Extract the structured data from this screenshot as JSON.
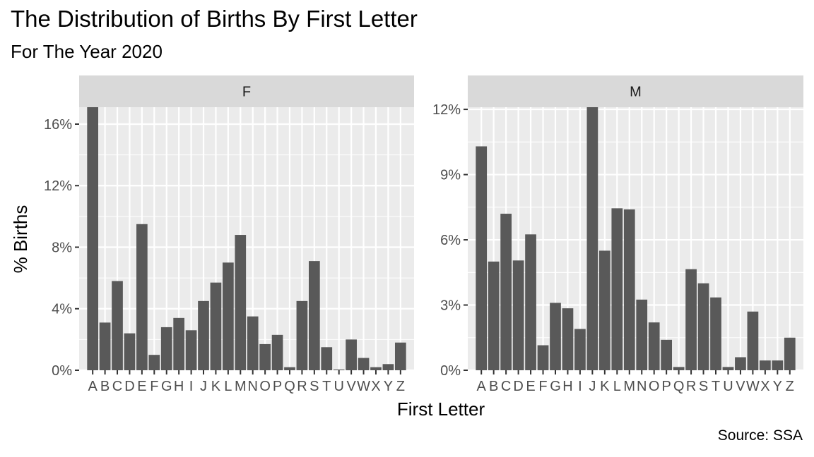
{
  "title": "The Distribution of Births By First Letter",
  "subtitle": "For The Year 2020",
  "caption": "Source: SSA",
  "chart_data": {
    "type": "bar",
    "title": "The Distribution of Births By First Letter",
    "subtitle": "For The Year 2020",
    "xlabel": "First Letter",
    "ylabel": "% Births",
    "caption": "Source: SSA",
    "bar_color": "#595959",
    "panel_background": "#EBEBEB",
    "strip_background": "#D9D9D9",
    "grid": true,
    "categories": [
      "A",
      "B",
      "C",
      "D",
      "E",
      "F",
      "G",
      "H",
      "I",
      "J",
      "K",
      "L",
      "M",
      "N",
      "O",
      "P",
      "Q",
      "R",
      "S",
      "T",
      "U",
      "V",
      "W",
      "X",
      "Y",
      "Z"
    ],
    "panels": [
      {
        "label": "F",
        "ylim": [
          0,
          17.1
        ],
        "yticks": [
          0,
          4,
          8,
          12,
          16
        ],
        "ytick_labels": [
          "0%",
          "4%",
          "8%",
          "12%",
          "16%"
        ],
        "values": [
          17.1,
          3.1,
          5.8,
          2.4,
          9.5,
          1.0,
          2.8,
          3.4,
          2.6,
          4.5,
          5.7,
          7.0,
          8.8,
          3.5,
          1.7,
          2.3,
          0.2,
          4.5,
          7.1,
          1.5,
          0.05,
          2.0,
          0.8,
          0.2,
          0.4,
          1.8
        ]
      },
      {
        "label": "M",
        "ylim": [
          0,
          12.1
        ],
        "yticks": [
          0,
          3,
          6,
          9,
          12
        ],
        "ytick_labels": [
          "0%",
          "3%",
          "6%",
          "9%",
          "12%"
        ],
        "values": [
          10.3,
          5.0,
          7.2,
          5.05,
          6.25,
          1.15,
          3.1,
          2.85,
          1.9,
          12.1,
          5.5,
          7.45,
          7.4,
          3.25,
          2.2,
          1.4,
          0.15,
          4.65,
          4.0,
          3.35,
          0.15,
          0.6,
          2.7,
          0.45,
          0.45,
          1.5
        ]
      }
    ]
  }
}
